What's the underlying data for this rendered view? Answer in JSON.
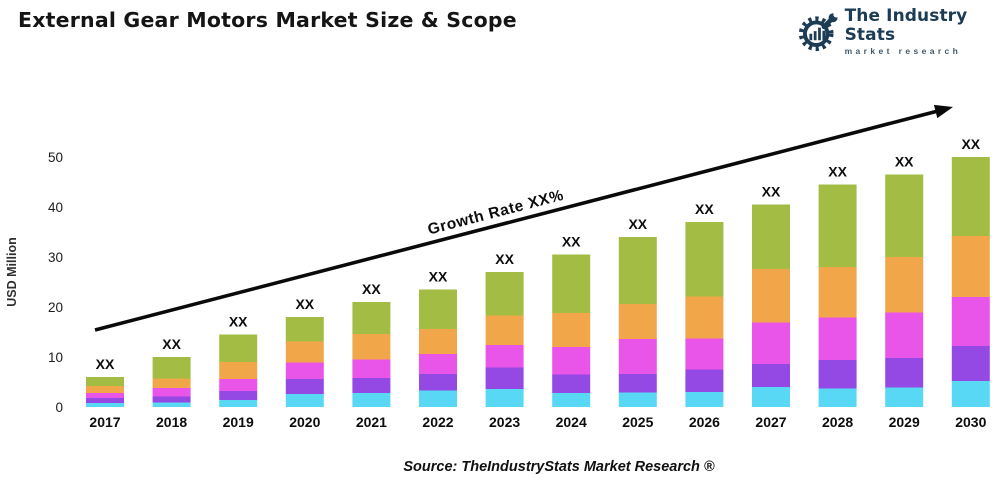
{
  "header": {
    "title": "External Gear Motors Market Size & Scope",
    "logo": {
      "name": "The Industry Stats",
      "tagline": "market research",
      "brand_color": "#1C3B55"
    }
  },
  "chart_data": {
    "type": "bar",
    "stacked": true,
    "title": "",
    "xlabel": "",
    "ylabel": "USD Million",
    "ylim": [
      0,
      50
    ],
    "yticks": [
      0,
      10,
      20,
      30,
      40,
      50
    ],
    "grid": false,
    "legend": "none",
    "bar_value_label": "XX",
    "trend_annotation": "Growth Rate XX%",
    "categories": [
      "2017",
      "2018",
      "2019",
      "2020",
      "2021",
      "2022",
      "2023",
      "2024",
      "2025",
      "2026",
      "2027",
      "2028",
      "2029",
      "2030"
    ],
    "series": [
      {
        "name": "segment-cyan",
        "color": "#58D8F5",
        "values": [
          0.8,
          0.9,
          1.4,
          2.6,
          2.8,
          3.3,
          3.6,
          2.8,
          2.9,
          3.0,
          4.0,
          3.7,
          3.9,
          5.2
        ]
      },
      {
        "name": "segment-purple",
        "color": "#9448E4",
        "values": [
          1.0,
          1.2,
          1.8,
          3.0,
          3.0,
          3.3,
          4.3,
          3.7,
          3.7,
          4.5,
          4.6,
          5.7,
          5.9,
          7.0
        ]
      },
      {
        "name": "segment-magenta",
        "color": "#E955E9",
        "values": [
          1.0,
          1.7,
          2.4,
          3.3,
          3.7,
          4.0,
          4.5,
          5.5,
          7.0,
          6.2,
          8.3,
          8.5,
          9.1,
          9.8
        ]
      },
      {
        "name": "segment-orange",
        "color": "#F2A64A",
        "values": [
          1.4,
          1.9,
          3.4,
          4.2,
          5.1,
          5.0,
          5.9,
          6.8,
          7.0,
          8.4,
          10.7,
          10.1,
          11.1,
          12.2
        ]
      },
      {
        "name": "segment-green",
        "color": "#A3BD44",
        "values": [
          1.8,
          4.3,
          5.5,
          4.9,
          6.4,
          7.9,
          8.7,
          11.7,
          13.4,
          14.9,
          12.9,
          16.5,
          16.5,
          15.8
        ]
      }
    ],
    "bar_totals": [
      6.0,
      10.0,
      14.5,
      18.0,
      21.0,
      23.5,
      27.0,
      30.5,
      34.0,
      37.0,
      40.5,
      44.5,
      46.5,
      50.0
    ]
  },
  "footer": {
    "source": "Source: TheIndustryStats Market Research ®"
  }
}
